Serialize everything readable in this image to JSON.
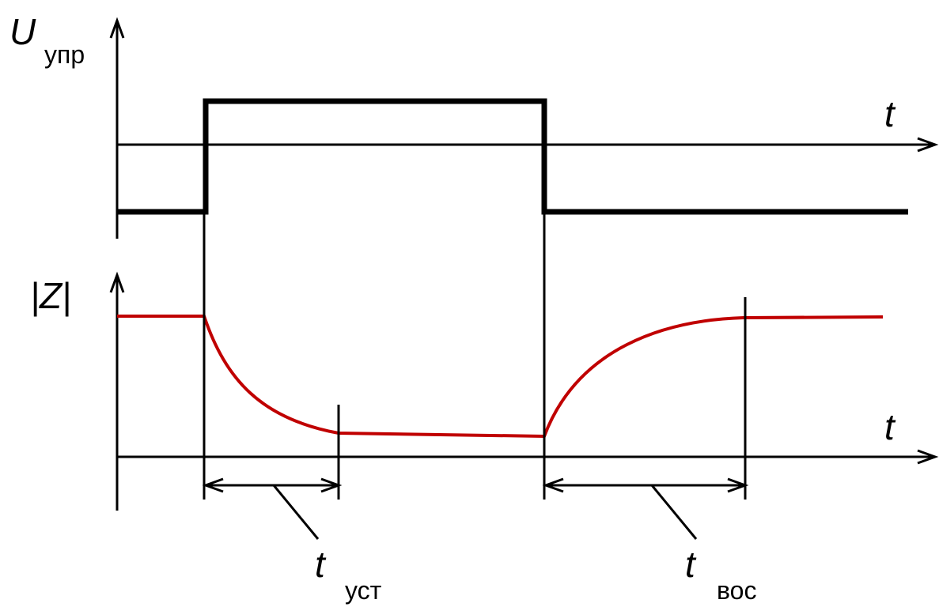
{
  "top_plot": {
    "ylabel_main": "U",
    "ylabel_sub": "упр",
    "xlabel": "t"
  },
  "bottom_plot": {
    "ylabel": "|Z|",
    "xlabel": "t"
  },
  "intervals": {
    "settle_main": "t",
    "settle_sub": "уст",
    "recover_main": "t",
    "recover_sub": "вос"
  },
  "colors": {
    "signal": "#000000",
    "impedance": "#c00000"
  }
}
